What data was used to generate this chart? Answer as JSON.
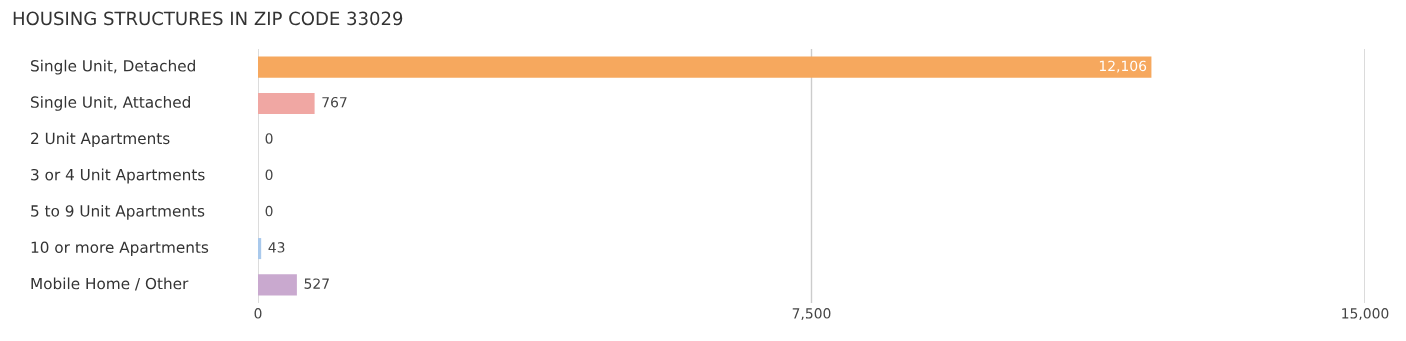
{
  "chart_data": {
    "type": "bar",
    "orientation": "horizontal",
    "title": "HOUSING STRUCTURES IN ZIP CODE 33029",
    "categories": [
      "Single Unit, Detached",
      "Single Unit, Attached",
      "2 Unit Apartments",
      "3 or 4 Unit Apartments",
      "5 to 9 Unit Apartments",
      "10 or more Apartments",
      "Mobile Home / Other"
    ],
    "values": [
      12106,
      767,
      0,
      0,
      0,
      43,
      527
    ],
    "colors": [
      "#f6a85e",
      "#f0a7a3",
      "#a9c9ec",
      "#a9c9ec",
      "#a9c9ec",
      "#a9c9ec",
      "#c9a9cf"
    ],
    "value_labels": [
      "12,106",
      "767",
      "0",
      "0",
      "0",
      "43",
      "527"
    ],
    "xlim": [
      0,
      15000
    ],
    "xticks": [
      {
        "value": 0,
        "label": "0"
      },
      {
        "value": 7500,
        "label": "7,500"
      },
      {
        "value": 15000,
        "label": "15,000"
      }
    ],
    "grid": "x"
  }
}
